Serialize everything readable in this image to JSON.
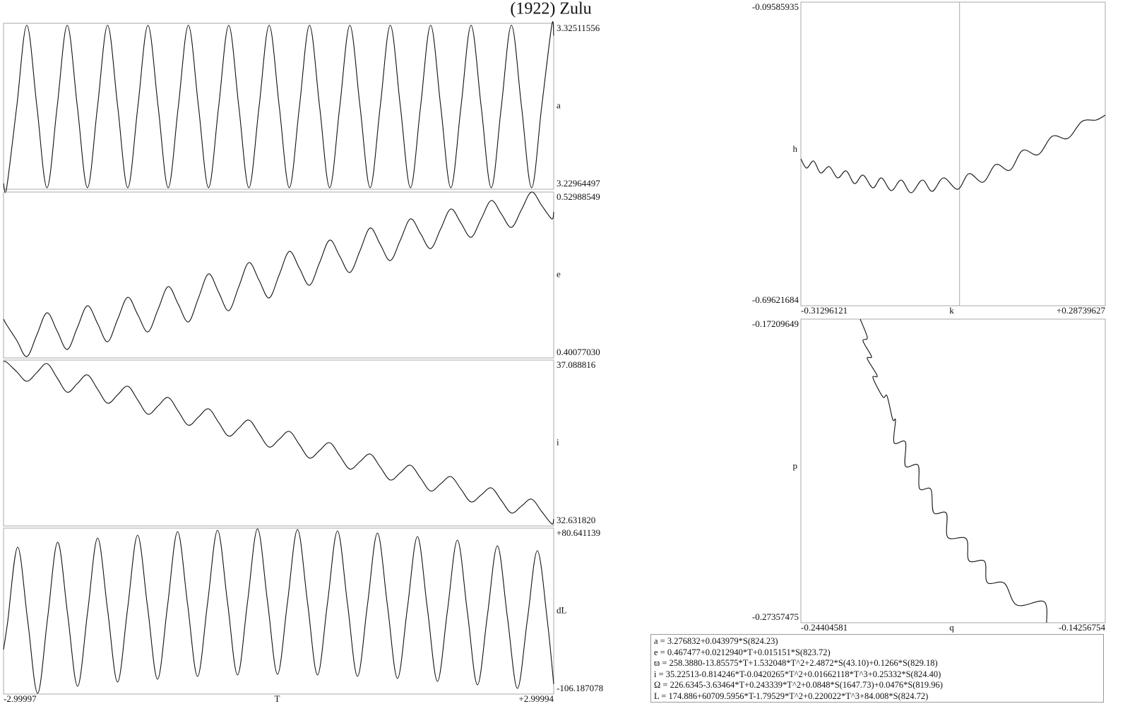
{
  "title": "(1922) Zulu",
  "chart_data": [
    {
      "type": "line",
      "ylabel": "a",
      "color": "#111",
      "xlim": [
        -2.99997,
        2.99994
      ],
      "ylim": [
        3.22964497,
        3.32511556
      ],
      "yticks": [
        3.22964497,
        3.32511556
      ],
      "x": [
        -2.99997,
        -2.966,
        -2.856,
        -2.746,
        -2.636,
        -2.526,
        -2.415,
        -2.305,
        -2.195,
        -2.085,
        -1.975,
        -1.865,
        -1.755,
        -1.645,
        -1.535,
        -1.425,
        -1.314,
        -1.204,
        -1.094,
        -0.984,
        -0.874,
        -0.764,
        -0.654,
        -0.544,
        -0.434,
        -0.324,
        -0.213,
        -0.103,
        0.007,
        0.117,
        0.227,
        0.337,
        0.447,
        0.557,
        0.667,
        0.777,
        0.888,
        0.998,
        1.108,
        1.218,
        1.328,
        1.438,
        1.548,
        1.658,
        1.768,
        1.878,
        1.989,
        2.099,
        2.209,
        2.319,
        2.429,
        2.539,
        2.649,
        2.759,
        2.869,
        2.979,
        2.99994
      ],
      "values": [
        3.233,
        3.2305,
        3.2772,
        3.324,
        3.2772,
        3.2305,
        3.2772,
        3.324,
        3.2772,
        3.2305,
        3.2772,
        3.324,
        3.2772,
        3.2305,
        3.2772,
        3.324,
        3.2772,
        3.2305,
        3.2772,
        3.324,
        3.2772,
        3.2305,
        3.2772,
        3.324,
        3.2772,
        3.2305,
        3.2772,
        3.324,
        3.2772,
        3.2305,
        3.2772,
        3.324,
        3.2772,
        3.2305,
        3.2772,
        3.324,
        3.2772,
        3.2305,
        3.2772,
        3.324,
        3.2772,
        3.2305,
        3.2772,
        3.324,
        3.2772,
        3.2305,
        3.2772,
        3.324,
        3.2772,
        3.2305,
        3.2772,
        3.324,
        3.2772,
        3.2305,
        3.2772,
        3.324,
        3.318
      ]
    },
    {
      "type": "line",
      "ylabel": "e",
      "color": "#111",
      "xlim": [
        -2.99997,
        2.99994
      ],
      "ylim": [
        0.4007703,
        0.52988549
      ],
      "yticks": [
        {
          "value": 0.4007703,
          "label": "0.40077030"
        },
        0.52988549
      ],
      "x": [
        -2.99997,
        -2.966,
        -2.856,
        -2.746,
        -2.636,
        -2.526,
        -2.415,
        -2.305,
        -2.195,
        -2.085,
        -1.975,
        -1.865,
        -1.755,
        -1.645,
        -1.535,
        -1.425,
        -1.314,
        -1.204,
        -1.094,
        -0.984,
        -0.874,
        -0.764,
        -0.654,
        -0.544,
        -0.434,
        -0.324,
        -0.213,
        -0.103,
        0.007,
        0.117,
        0.227,
        0.337,
        0.447,
        0.557,
        0.667,
        0.777,
        0.888,
        0.998,
        1.108,
        1.218,
        1.328,
        1.438,
        1.548,
        1.658,
        1.768,
        1.878,
        1.989,
        2.099,
        2.209,
        2.319,
        2.429,
        2.539,
        2.649,
        2.759,
        2.869,
        2.979,
        2.99994
      ],
      "values": [
        0.431,
        0.4266,
        0.4145,
        0.4019,
        0.4189,
        0.4359,
        0.4217,
        0.4074,
        0.4244,
        0.4414,
        0.4277,
        0.4134,
        0.431,
        0.448,
        0.4343,
        0.4211,
        0.4387,
        0.4563,
        0.4425,
        0.4288,
        0.4475,
        0.4662,
        0.4519,
        0.4376,
        0.4563,
        0.475,
        0.4612,
        0.4475,
        0.4656,
        0.4837,
        0.4706,
        0.4574,
        0.475,
        0.4925,
        0.4799,
        0.4673,
        0.4843,
        0.5019,
        0.4892,
        0.4766,
        0.4925,
        0.509,
        0.4975,
        0.4859,
        0.5013,
        0.5167,
        0.5057,
        0.4947,
        0.509,
        0.5233,
        0.5129,
        0.5024,
        0.5162,
        0.5299,
        0.5194,
        0.509,
        0.5145
      ]
    },
    {
      "type": "line",
      "ylabel": "i",
      "color": "#111",
      "xlim": [
        -2.99997,
        2.99994
      ],
      "ylim": [
        32.63182,
        37.088816
      ],
      "yticks": [
        {
          "value": 32.63182,
          "label": "32.631820"
        },
        37.088816
      ],
      "x": [
        -2.99997,
        -2.966,
        -2.856,
        -2.746,
        -2.636,
        -2.526,
        -2.415,
        -2.305,
        -2.195,
        -2.085,
        -1.975,
        -1.865,
        -1.755,
        -1.645,
        -1.535,
        -1.425,
        -1.314,
        -1.204,
        -1.094,
        -0.984,
        -0.874,
        -0.764,
        -0.654,
        -0.544,
        -0.434,
        -0.324,
        -0.213,
        -0.103,
        0.007,
        0.117,
        0.227,
        0.337,
        0.447,
        0.557,
        0.667,
        0.777,
        0.888,
        0.998,
        1.108,
        1.218,
        1.328,
        1.438,
        1.548,
        1.658,
        1.768,
        1.878,
        1.989,
        2.099,
        2.209,
        2.319,
        2.429,
        2.539,
        2.649,
        2.759,
        2.869,
        2.979,
        2.99994
      ],
      "values": [
        37.051,
        37.032,
        36.776,
        36.52,
        36.757,
        36.994,
        36.61,
        36.226,
        36.458,
        36.691,
        36.31,
        35.93,
        36.159,
        36.387,
        36.012,
        35.636,
        35.86,
        36.084,
        35.712,
        35.34,
        35.56,
        35.78,
        35.413,
        35.046,
        35.261,
        35.477,
        35.114,
        34.752,
        34.963,
        35.173,
        34.815,
        34.456,
        34.663,
        34.87,
        34.516,
        34.162,
        34.364,
        34.566,
        34.216,
        33.867,
        34.065,
        34.263,
        33.918,
        33.573,
        33.766,
        33.959,
        33.619,
        33.279,
        33.467,
        33.656,
        33.319,
        32.983,
        33.168,
        33.353,
        33.021,
        32.689,
        32.821
      ]
    },
    {
      "type": "line",
      "ylabel": "dL",
      "xlabel": "T",
      "color": "#111",
      "xlim": [
        -2.99997,
        2.99994
      ],
      "xticks": [
        -2.99997,
        {
          "value": 2.99994,
          "label": "+2.99994"
        }
      ],
      "ylim": [
        -106.187078,
        80.641139
      ],
      "yticks": [
        -106.187078,
        {
          "value": 80.641139,
          "label": "+80.641139"
        }
      ],
      "x": [
        -2.99997,
        -2.955,
        -2.846,
        -2.737,
        -2.628,
        -2.519,
        -2.41,
        -2.301,
        -2.192,
        -2.083,
        -1.974,
        -1.865,
        -1.756,
        -1.647,
        -1.538,
        -1.429,
        -1.32,
        -1.211,
        -1.102,
        -0.993,
        -0.884,
        -0.775,
        -0.666,
        -0.557,
        -0.448,
        -0.339,
        -0.23,
        -0.121,
        -0.012,
        0.097,
        0.206,
        0.315,
        0.424,
        0.533,
        0.642,
        0.751,
        0.86,
        0.969,
        1.078,
        1.187,
        1.296,
        1.405,
        1.514,
        1.623,
        1.732,
        1.841,
        1.95,
        2.059,
        2.168,
        2.277,
        2.386,
        2.495,
        2.604,
        2.713,
        2.822,
        2.931,
        2.99994
      ],
      "values": [
        -56.1,
        -25.0,
        59.18,
        -23.11,
        -105.39,
        -20.33,
        64.74,
        -16.35,
        -97.44,
        -13.97,
        69.51,
        -11.58,
        -92.67,
        -9.99,
        72.69,
        -8.4,
        -89.49,
        -6.41,
        76.67,
        -4.82,
        -86.31,
        -4.03,
        78.26,
        -3.23,
        -84.72,
        -2.44,
        79.85,
        -2.04,
        -83.93,
        -2.44,
        79.05,
        -2.84,
        -84.72,
        -3.63,
        77.46,
        -4.43,
        -86.31,
        -5.62,
        75.08,
        -6.81,
        -88.7,
        -8.8,
        71.1,
        -10.39,
        -91.88,
        -12.38,
        67.13,
        -14.36,
        -95.85,
        -17.54,
        60.77,
        -19.53,
        -99.83,
        -22.32,
        55.2,
        -24.0,
        -95.0
      ]
    },
    {
      "type": "line",
      "ylabel": "h",
      "xlabel": "k",
      "color": "#111",
      "xlim": [
        -0.31296121,
        0.28739627
      ],
      "xticks": [
        -0.31296121,
        {
          "value": 0.28739627,
          "label": "+0.28739627"
        }
      ],
      "ylim": [
        -0.69621684,
        -0.09585935
      ],
      "yticks": [
        -0.69621684,
        -0.09585935
      ],
      "x": [
        -0.313,
        -0.3018,
        -0.2879,
        -0.274,
        -0.2572,
        -0.2405,
        -0.2238,
        -0.2071,
        -0.1904,
        -0.1709,
        -0.1542,
        -0.1347,
        -0.1152,
        -0.0957,
        -0.0734,
        -0.0539,
        -0.0316,
        -0.0037,
        0.0186,
        0.0464,
        0.0715,
        0.0993,
        0.1244,
        0.1551,
        0.1829,
        0.2136,
        0.2414,
        0.2693,
        0.2874
      ],
      "values": [
        -0.4058,
        -0.424,
        -0.41,
        -0.4337,
        -0.4212,
        -0.4435,
        -0.4296,
        -0.4547,
        -0.4379,
        -0.4631,
        -0.4435,
        -0.4686,
        -0.4477,
        -0.4728,
        -0.4477,
        -0.47,
        -0.4435,
        -0.4659,
        -0.4351,
        -0.4519,
        -0.417,
        -0.4282,
        -0.3891,
        -0.3974,
        -0.3611,
        -0.3653,
        -0.3318,
        -0.329,
        -0.3193
      ]
    },
    {
      "type": "line",
      "ylabel": "p",
      "xlabel": "q",
      "color": "#111",
      "xlim": [
        -0.24404581,
        -0.14256754
      ],
      "xticks": [
        -0.24404581,
        -0.14256754
      ],
      "ylim": [
        -0.27357475,
        -0.17209649
      ],
      "yticks": [
        -0.27357475,
        -0.17209649
      ],
      "x": [
        -0.22427,
        -0.22191,
        -0.22333,
        -0.2205,
        -0.22191,
        -0.21862,
        -0.22003,
        -0.21673,
        -0.21532,
        -0.21344,
        -0.2125,
        -0.21297,
        -0.2092,
        -0.2092,
        -0.20496,
        -0.20449,
        -0.20072,
        -0.19978,
        -0.19554,
        -0.19507,
        -0.18895,
        -0.18801,
        -0.18283,
        -0.18189,
        -0.17624,
        -0.172,
        -0.16305,
        -0.16211
      ],
      "values": [
        -0.1721,
        -0.17823,
        -0.17941,
        -0.1846,
        -0.18531,
        -0.19098,
        -0.19168,
        -0.19806,
        -0.19782,
        -0.20561,
        -0.20584,
        -0.2134,
        -0.21316,
        -0.22118,
        -0.22095,
        -0.22874,
        -0.22897,
        -0.23676,
        -0.237,
        -0.24502,
        -0.24549,
        -0.25281,
        -0.25304,
        -0.26012,
        -0.26036,
        -0.26768,
        -0.2665,
        -0.27357
      ]
    }
  ],
  "formulas": [
    "a = 3.276832+0.043979*S(824.23)",
    "e = 0.467477+0.0212940*T+0.015151*S(823.72)",
    "ϖ = 258.3880-13.85575*T+1.532048*T^2+2.4872*S(43.10)+0.1266*S(829.18)",
    "i = 35.22513-0.814246*T-0.0420265*T^2+0.01662118*T^3+0.25332*S(824.40)",
    "Ω = 226.6345-3.63464*T+0.243339*T^2+0.0848*S(1647.73)+0.0476*S(819.96)",
    "L = 174.886+60709.5956*T-1.79529*T^2+0.220022*T^3+84.008*S(824.72)"
  ]
}
